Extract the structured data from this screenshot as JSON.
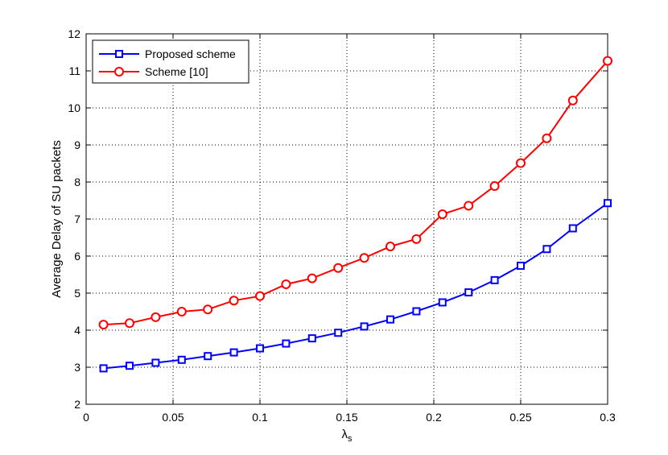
{
  "chart_data": {
    "type": "line",
    "x": [
      0.01,
      0.025,
      0.04,
      0.055,
      0.07,
      0.085,
      0.1,
      0.115,
      0.13,
      0.145,
      0.16,
      0.175,
      0.19,
      0.205,
      0.22,
      0.235,
      0.25,
      0.265,
      0.28,
      0.3
    ],
    "series": [
      {
        "name": "Proposed scheme",
        "color": "#0000ff",
        "marker": "square",
        "values": [
          2.97,
          3.04,
          3.12,
          3.2,
          3.3,
          3.4,
          3.51,
          3.64,
          3.78,
          3.93,
          4.1,
          4.29,
          4.51,
          4.75,
          5.02,
          5.35,
          5.74,
          6.19,
          6.75,
          7.43
        ]
      },
      {
        "name": "Scheme [10]",
        "color": "#ff0000",
        "marker": "circle",
        "values": [
          4.15,
          4.19,
          4.35,
          4.5,
          4.56,
          4.8,
          4.92,
          5.24,
          5.4,
          5.68,
          5.95,
          6.26,
          6.46,
          7.13,
          7.36,
          7.89,
          8.51,
          9.18,
          10.2,
          11.27
        ]
      }
    ],
    "xlim": [
      0,
      0.3
    ],
    "ylim": [
      2,
      12
    ],
    "xticks": [
      "0",
      "0.05",
      "0.1",
      "0.15",
      "0.2",
      "0.25",
      "0.3"
    ],
    "xtick_values": [
      0,
      0.05,
      0.1,
      0.15,
      0.2,
      0.25,
      0.3
    ],
    "yticks": [
      "2",
      "3",
      "4",
      "5",
      "6",
      "7",
      "8",
      "9",
      "10",
      "11",
      "12"
    ],
    "ytick_values": [
      2,
      3,
      4,
      5,
      6,
      7,
      8,
      9,
      10,
      11,
      12
    ],
    "xlabel": "λ",
    "xlabel_subscript": "s",
    "ylabel": "Average Delay of SU packets",
    "grid": true,
    "legend_position": "top-left"
  }
}
